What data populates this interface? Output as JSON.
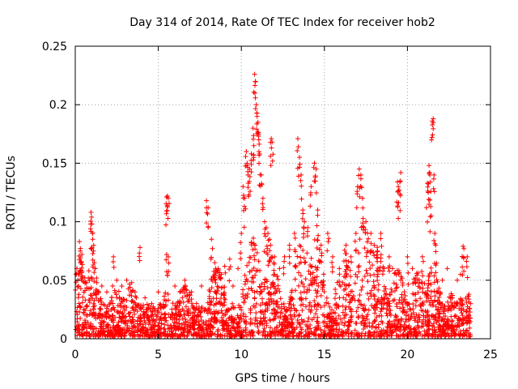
{
  "chart_data": {
    "type": "scatter",
    "title": "Day 314 of 2014, Rate Of TEC Index for receiver hob2",
    "xlabel": "GPS time / hours",
    "ylabel": "ROTI / TECUs",
    "xlim": [
      0,
      25
    ],
    "ylim": [
      0,
      0.25
    ],
    "xticks": [
      0,
      5,
      10,
      15,
      20,
      25
    ],
    "yticks": [
      0,
      0.05,
      0.1,
      0.15,
      0.2,
      0.25
    ],
    "xtick_labels": [
      "0",
      "5",
      "10",
      "15",
      "20",
      "25"
    ],
    "ytick_labels": [
      "0",
      "0.05",
      "0.1",
      "0.15",
      "0.2",
      "0.25"
    ],
    "grid": true,
    "marker": "+",
    "series": [
      {
        "name": "ROTI",
        "color": "#ff0000",
        "description": "dense scatter of ROTI values, 0 to 23.8 h, mostly below 0.05 TECUs",
        "points": [
          [
            0.05,
            0.055
          ],
          [
            0.1,
            0.06
          ],
          [
            0.15,
            0.05
          ],
          [
            0.2,
            0.045
          ],
          [
            0.25,
            0.083
          ],
          [
            0.3,
            0.075
          ],
          [
            0.35,
            0.065
          ],
          [
            0.4,
            0.072
          ],
          [
            0.95,
            0.108
          ],
          [
            0.98,
            0.104
          ],
          [
            1.0,
            0.098
          ],
          [
            1.05,
            0.085
          ],
          [
            1.1,
            0.075
          ],
          [
            1.15,
            0.065
          ],
          [
            1.2,
            0.06
          ],
          [
            1.3,
            0.048
          ],
          [
            1.6,
            0.045
          ],
          [
            1.9,
            0.04
          ],
          [
            2.3,
            0.07
          ],
          [
            2.5,
            0.05
          ],
          [
            2.8,
            0.045
          ],
          [
            3.1,
            0.05
          ],
          [
            3.4,
            0.048
          ],
          [
            3.6,
            0.04
          ],
          [
            3.9,
            0.078
          ],
          [
            4.2,
            0.035
          ],
          [
            4.6,
            0.03
          ],
          [
            5.0,
            0.04
          ],
          [
            5.5,
            0.121
          ],
          [
            5.55,
            0.122
          ],
          [
            5.6,
            0.12
          ],
          [
            5.5,
            0.072
          ],
          [
            5.6,
            0.07
          ],
          [
            6.0,
            0.045
          ],
          [
            6.3,
            0.04
          ],
          [
            6.6,
            0.05
          ],
          [
            7.0,
            0.04
          ],
          [
            7.3,
            0.03
          ],
          [
            7.6,
            0.045
          ],
          [
            7.9,
            0.118
          ],
          [
            8.0,
            0.112
          ],
          [
            8.2,
            0.085
          ],
          [
            8.4,
            0.065
          ],
          [
            8.6,
            0.06
          ],
          [
            8.8,
            0.055
          ],
          [
            9.0,
            0.062
          ],
          [
            9.3,
            0.068
          ],
          [
            9.5,
            0.045
          ],
          [
            9.8,
            0.06
          ],
          [
            10.0,
            0.09
          ],
          [
            10.1,
            0.13
          ],
          [
            10.2,
            0.12
          ],
          [
            10.3,
            0.16
          ],
          [
            10.35,
            0.15
          ],
          [
            10.4,
            0.14
          ],
          [
            10.5,
            0.145
          ],
          [
            10.6,
            0.158
          ],
          [
            10.7,
            0.18
          ],
          [
            10.75,
            0.165
          ],
          [
            10.8,
            0.226
          ],
          [
            10.85,
            0.22
          ],
          [
            10.9,
            0.2
          ],
          [
            10.95,
            0.19
          ],
          [
            11.0,
            0.185
          ],
          [
            11.05,
            0.17
          ],
          [
            11.1,
            0.158
          ],
          [
            11.2,
            0.14
          ],
          [
            11.3,
            0.12
          ],
          [
            11.4,
            0.1
          ],
          [
            11.5,
            0.095
          ],
          [
            11.6,
            0.09
          ],
          [
            11.7,
            0.085
          ],
          [
            11.8,
            0.171
          ],
          [
            11.85,
            0.168
          ],
          [
            12.0,
            0.07
          ],
          [
            12.3,
            0.06
          ],
          [
            12.6,
            0.07
          ],
          [
            12.9,
            0.08
          ],
          [
            13.2,
            0.09
          ],
          [
            13.4,
            0.171
          ],
          [
            13.5,
            0.155
          ],
          [
            13.6,
            0.14
          ],
          [
            13.7,
            0.11
          ],
          [
            13.8,
            0.1
          ],
          [
            14.0,
            0.095
          ],
          [
            14.2,
            0.13
          ],
          [
            14.4,
            0.15
          ],
          [
            14.5,
            0.145
          ],
          [
            14.6,
            0.11
          ],
          [
            14.8,
            0.08
          ],
          [
            15.2,
            0.09
          ],
          [
            15.5,
            0.07
          ],
          [
            15.9,
            0.06
          ],
          [
            16.3,
            0.08
          ],
          [
            16.6,
            0.07
          ],
          [
            16.9,
            0.09
          ],
          [
            17.0,
            0.13
          ],
          [
            17.1,
            0.145
          ],
          [
            17.2,
            0.14
          ],
          [
            17.3,
            0.12
          ],
          [
            17.5,
            0.1
          ],
          [
            17.8,
            0.09
          ],
          [
            18.0,
            0.08
          ],
          [
            18.2,
            0.075
          ],
          [
            18.4,
            0.09
          ],
          [
            18.6,
            0.06
          ],
          [
            18.9,
            0.07
          ],
          [
            19.1,
            0.06
          ],
          [
            19.4,
            0.134
          ],
          [
            19.45,
            0.13
          ],
          [
            19.5,
            0.127
          ],
          [
            19.6,
            0.142
          ],
          [
            20.0,
            0.07
          ],
          [
            20.3,
            0.06
          ],
          [
            20.6,
            0.05
          ],
          [
            20.9,
            0.07
          ],
          [
            21.2,
            0.133
          ],
          [
            21.25,
            0.125
          ],
          [
            21.3,
            0.148
          ],
          [
            21.35,
            0.14
          ],
          [
            21.4,
            0.113
          ],
          [
            21.5,
            0.186
          ],
          [
            21.55,
            0.188
          ],
          [
            21.6,
            0.14
          ],
          [
            21.65,
            0.09
          ],
          [
            21.7,
            0.08
          ],
          [
            21.8,
            0.04
          ],
          [
            22.1,
            0.05
          ],
          [
            22.4,
            0.06
          ],
          [
            22.7,
            0.035
          ],
          [
            23.0,
            0.05
          ],
          [
            23.2,
            0.055
          ],
          [
            23.35,
            0.079
          ],
          [
            23.4,
            0.077
          ],
          [
            23.6,
            0.07
          ],
          [
            23.7,
            0.038
          ],
          [
            23.8,
            0.03
          ]
        ]
      }
    ]
  }
}
